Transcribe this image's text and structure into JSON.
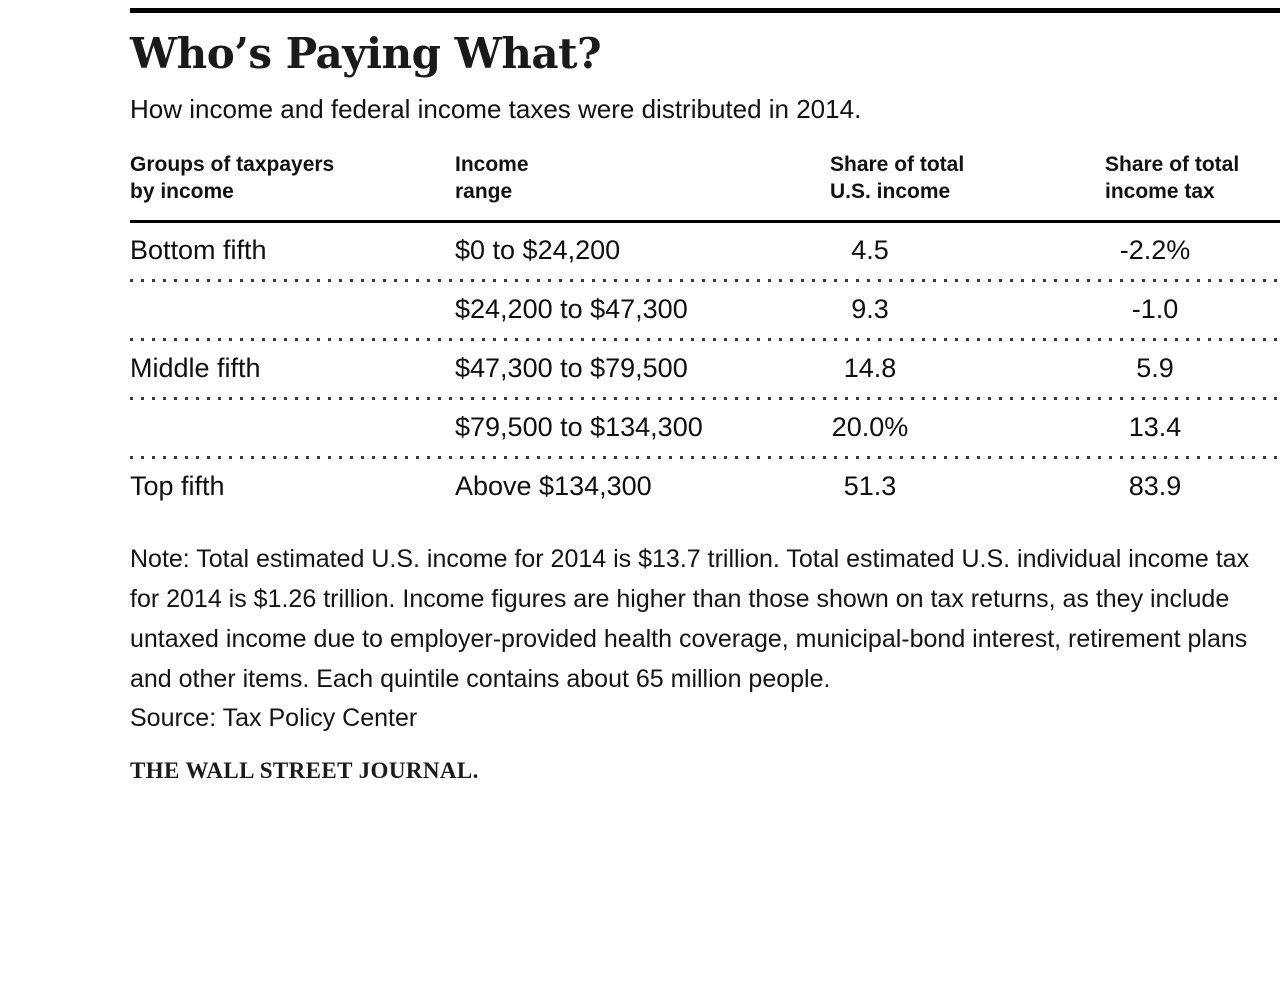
{
  "title": "Who’s Paying What?",
  "subtitle": "How income and federal income taxes were distributed in 2014.",
  "table": {
    "headers": [
      {
        "line1": "Groups of taxpayers",
        "line2": "by income"
      },
      {
        "line1": "Income",
        "line2": "range"
      },
      {
        "line1": "Share of total",
        "line2": "U.S. income"
      },
      {
        "line1": "Share of total",
        "line2": "income tax"
      }
    ],
    "rows": [
      {
        "group": "Bottom fifth",
        "range": "$0 to $24,200",
        "income_share": "4.5",
        "tax_share": "-2.2%"
      },
      {
        "group": "",
        "range": "$24,200 to $47,300",
        "income_share": "9.3",
        "tax_share": "-1.0"
      },
      {
        "group": "Middle fifth",
        "range": "$47,300 to $79,500",
        "income_share": "14.8",
        "tax_share": "5.9"
      },
      {
        "group": "",
        "range": "$79,500 to $134,300",
        "income_share": "20.0%",
        "tax_share": "13.4"
      },
      {
        "group": "Top fifth",
        "range": "Above $134,300",
        "income_share": "51.3",
        "tax_share": "83.9"
      }
    ]
  },
  "note": "Note: Total estimated U.S. income for 2014 is $13.7 trillion. Total estimated U.S. individual income tax for 2014 is $1.26 trillion. Income figures are higher than those shown on tax returns, as they include untaxed income due to employer-provided health coverage, municipal-bond interest, retirement plans and other items. Each quintile contains about 65 million people.",
  "source": "Source: Tax Policy Center",
  "attribution": "THE WALL STREET JOURNAL.",
  "colors": {
    "text": "#111111",
    "rule": "#000000",
    "dotted_separator": "#3a3a3a",
    "background": "#ffffff"
  },
  "chart_data": {
    "type": "table",
    "title": "Who’s Paying What?",
    "subtitle": "How income and federal income taxes were distributed in 2014.",
    "columns": [
      "Groups of taxpayers by income",
      "Income range",
      "Share of total U.S. income",
      "Share of total income tax"
    ],
    "rows": [
      [
        "Bottom fifth",
        "$0 to $24,200",
        4.5,
        -2.2
      ],
      [
        "",
        "$24,200 to $47,300",
        9.3,
        -1.0
      ],
      [
        "Middle fifth",
        "$47,300 to $79,500",
        14.8,
        5.9
      ],
      [
        "",
        "$79,500 to $134,300",
        20.0,
        13.4
      ],
      [
        "Top fifth",
        "Above $134,300",
        51.3,
        83.9
      ]
    ],
    "units": "percent of total",
    "year": "2014"
  }
}
